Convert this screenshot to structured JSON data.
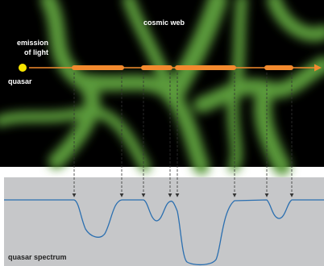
{
  "labels": {
    "cosmic_web": "cosmic web",
    "emission_line1": "emission",
    "emission_line2": "of light",
    "quasar": "quasar",
    "spectrum": "quasar spectrum"
  }
}
